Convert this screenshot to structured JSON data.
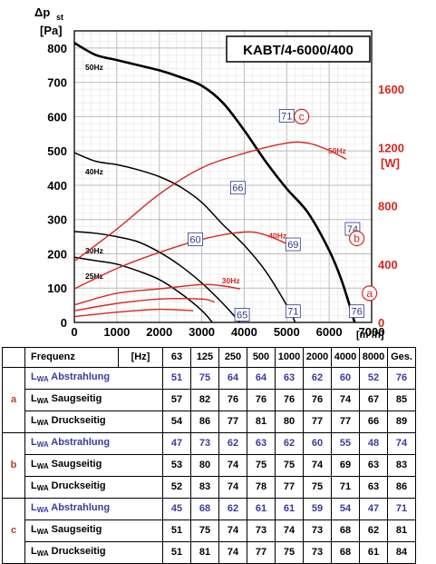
{
  "chart_data": {
    "type": "line",
    "title": "KABT/4-6000/400",
    "ylabel_symbol": "Δp",
    "ylabel_sub": "st",
    "ylabel_unit": "[Pa]",
    "xlabel_unit": "[m³/h]",
    "y2label_unit": "[W]",
    "xlim": [
      0,
      7000
    ],
    "ylim": [
      0,
      850
    ],
    "y2lim": [
      0,
      2000
    ],
    "x_ticks": [
      "0",
      "1000",
      "2000",
      "3000",
      "4000",
      "5000",
      "6000",
      "7000"
    ],
    "y_ticks": [
      "0",
      "100",
      "200",
      "300",
      "400",
      "500",
      "600",
      "700",
      "800"
    ],
    "y2_ticks": [
      "0",
      "400",
      "800",
      "1200",
      "1600"
    ],
    "grid": true,
    "pressure_curves": [
      {
        "name": "50Hz",
        "color": "#000000",
        "points": [
          [
            0,
            815
          ],
          [
            500,
            780
          ],
          [
            1000,
            765
          ],
          [
            1500,
            750
          ],
          [
            2000,
            735
          ],
          [
            2500,
            715
          ],
          [
            3000,
            690
          ],
          [
            3500,
            640
          ],
          [
            4000,
            560
          ],
          [
            4500,
            470
          ],
          [
            5000,
            390
          ],
          [
            5500,
            320
          ],
          [
            6000,
            210
          ],
          [
            6300,
            120
          ],
          [
            6600,
            0
          ]
        ]
      },
      {
        "name": "40Hz",
        "color": "#000000",
        "points": [
          [
            0,
            495
          ],
          [
            500,
            470
          ],
          [
            1000,
            460
          ],
          [
            1500,
            445
          ],
          [
            2000,
            425
          ],
          [
            2500,
            395
          ],
          [
            3000,
            350
          ],
          [
            3500,
            285
          ],
          [
            4000,
            225
          ],
          [
            4500,
            150
          ],
          [
            5000,
            50
          ],
          [
            5200,
            0
          ]
        ]
      },
      {
        "name": "30Hz",
        "color": "#000000",
        "points": [
          [
            0,
            265
          ],
          [
            500,
            260
          ],
          [
            1000,
            250
          ],
          [
            1500,
            235
          ],
          [
            2000,
            205
          ],
          [
            2500,
            165
          ],
          [
            3000,
            115
          ],
          [
            3500,
            55
          ],
          [
            3900,
            0
          ]
        ]
      },
      {
        "name": "25Hz",
        "color": "#000000",
        "points": [
          [
            0,
            190
          ],
          [
            500,
            180
          ],
          [
            1000,
            170
          ],
          [
            1500,
            150
          ],
          [
            2000,
            125
          ],
          [
            2500,
            85
          ],
          [
            3000,
            35
          ],
          [
            3250,
            0
          ]
        ]
      }
    ],
    "power_curves": [
      {
        "name": "50Hz",
        "color": "#d8261f",
        "points": [
          [
            0,
            420
          ],
          [
            1000,
            640
          ],
          [
            2000,
            880
          ],
          [
            3000,
            1060
          ],
          [
            4000,
            1160
          ],
          [
            5000,
            1230
          ],
          [
            5500,
            1230
          ],
          [
            6000,
            1180
          ],
          [
            6400,
            1120
          ]
        ]
      },
      {
        "name": "40Hz",
        "color": "#d8261f",
        "points": [
          [
            0,
            230
          ],
          [
            1000,
            370
          ],
          [
            2000,
            480
          ],
          [
            3000,
            570
          ],
          [
            4000,
            620
          ],
          [
            4500,
            600
          ],
          [
            5000,
            540
          ]
        ]
      },
      {
        "name": "30Hz",
        "color": "#d8261f",
        "points": [
          [
            0,
            120
          ],
          [
            1000,
            200
          ],
          [
            2000,
            230
          ],
          [
            3000,
            260
          ],
          [
            3500,
            250
          ],
          [
            3900,
            230
          ]
        ]
      },
      {
        "name": "",
        "color": "#d8261f",
        "points": [
          [
            0,
            80
          ],
          [
            1000,
            130
          ],
          [
            2000,
            160
          ],
          [
            3000,
            160
          ],
          [
            3300,
            140
          ]
        ]
      },
      {
        "name": "",
        "color": "#d8261f",
        "points": [
          [
            0,
            40
          ],
          [
            1000,
            70
          ],
          [
            2000,
            90
          ],
          [
            2800,
            80
          ]
        ]
      }
    ],
    "data_labels": [
      {
        "text": "71",
        "x": 5000,
        "y": 600
      },
      {
        "text": "66",
        "x": 3850,
        "y": 390
      },
      {
        "text": "69",
        "x": 5150,
        "y": 225
      },
      {
        "text": "74",
        "x": 6550,
        "y": 270
      },
      {
        "text": "60",
        "x": 2850,
        "y": 240
      },
      {
        "text": "65",
        "x": 3950,
        "y": 20
      },
      {
        "text": "71",
        "x": 5150,
        "y": 30
      },
      {
        "text": "76",
        "x": 6650,
        "y": 30
      }
    ],
    "markers": [
      {
        "text": "c",
        "x": 5350,
        "y": 600
      },
      {
        "text": "b",
        "x": 6650,
        "y": 245
      },
      {
        "text": "a",
        "x": 6950,
        "y": 85
      }
    ]
  },
  "table": {
    "header": {
      "label": "Frequenz",
      "unit": "[Hz]",
      "cols": [
        "63",
        "125",
        "250",
        "500",
        "1000",
        "2000",
        "4000",
        "8000",
        "Ges."
      ]
    },
    "groups": [
      {
        "id": "a",
        "rows": [
          {
            "pre": "L",
            "sub": "WA",
            "label": "Abstrahlung",
            "blue": true,
            "values": [
              "51",
              "75",
              "64",
              "64",
              "63",
              "62",
              "60",
              "52",
              "76"
            ]
          },
          {
            "pre": "L",
            "sub": "WA",
            "label": "Saugseitig",
            "blue": false,
            "values": [
              "57",
              "82",
              "76",
              "76",
              "76",
              "76",
              "74",
              "67",
              "85"
            ]
          },
          {
            "pre": "L",
            "sub": "WA",
            "label": "Druckseitig",
            "blue": false,
            "values": [
              "54",
              "86",
              "77",
              "81",
              "80",
              "77",
              "77",
              "66",
              "89"
            ]
          }
        ]
      },
      {
        "id": "b",
        "rows": [
          {
            "pre": "L",
            "sub": "WA",
            "label": "Abstrahlung",
            "blue": true,
            "values": [
              "47",
              "73",
              "62",
              "63",
              "62",
              "60",
              "55",
              "48",
              "74"
            ]
          },
          {
            "pre": "L",
            "sub": "WA",
            "label": "Saugseitig",
            "blue": false,
            "values": [
              "53",
              "80",
              "74",
              "75",
              "75",
              "74",
              "69",
              "63",
              "83"
            ]
          },
          {
            "pre": "L",
            "sub": "WA",
            "label": "Druckseitig",
            "blue": false,
            "values": [
              "52",
              "83",
              "74",
              "78",
              "77",
              "75",
              "71",
              "63",
              "86"
            ]
          }
        ]
      },
      {
        "id": "c",
        "rows": [
          {
            "pre": "L",
            "sub": "WA",
            "label": "Abstrahlung",
            "blue": true,
            "values": [
              "45",
              "68",
              "62",
              "61",
              "61",
              "59",
              "54",
              "47",
              "71"
            ]
          },
          {
            "pre": "L",
            "sub": "WA",
            "label": "Saugseitig",
            "blue": false,
            "values": [
              "51",
              "75",
              "74",
              "73",
              "74",
              "73",
              "68",
              "62",
              "81"
            ]
          },
          {
            "pre": "L",
            "sub": "WA",
            "label": "Druckseitig",
            "blue": false,
            "values": [
              "51",
              "81",
              "74",
              "77",
              "75",
              "73",
              "68",
              "61",
              "84"
            ]
          }
        ]
      }
    ]
  }
}
